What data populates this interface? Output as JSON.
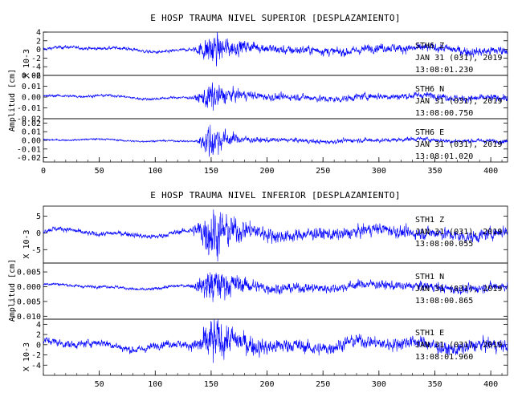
{
  "chart_data": [
    {
      "type": "line",
      "title": "E HOSP TRAUMA NIVEL SUPERIOR [DESPLAZAMIENTO]",
      "ylabel": "Amplitud [cm]",
      "xlim": [
        0,
        415
      ],
      "x_ticks": [
        "0",
        "50",
        "100",
        "150",
        "200",
        "250",
        "300",
        "350",
        "400"
      ],
      "traces": [
        {
          "station": "STH6",
          "component": "Z",
          "date": "JAN 31 (031), 2019",
          "time": "13:08:01.230",
          "scale_label": "X 10-3",
          "ylim": [
            -6,
            4
          ],
          "y_ticks": [
            "4",
            "2",
            "0",
            "-2",
            "-4",
            "-6"
          ],
          "envelope": {
            "pre": 0.3,
            "peak": 3.5,
            "post": 0.8,
            "start": 132,
            "peak_time": 150,
            "decay": 45
          }
        },
        {
          "station": "STH6",
          "component": "N",
          "date": "JAN 31 (031), 2019",
          "time": "13:08:00.750",
          "scale_label": "",
          "ylim": [
            -0.02,
            0.02
          ],
          "y_ticks": [
            "0.02",
            "0.01",
            "0.00",
            "-0.01",
            "-0.02"
          ],
          "envelope": {
            "pre": 0.001,
            "peak": 0.012,
            "post": 0.0025,
            "start": 132,
            "peak_time": 150,
            "decay": 40
          }
        },
        {
          "station": "STH6",
          "component": "E",
          "date": "JAN 31 (031), 2019",
          "time": "13:08:01.020",
          "scale_label": "",
          "ylim": [
            -0.025,
            0.025
          ],
          "y_ticks": [
            "0.02",
            "0.01",
            "0.00",
            "-0.01",
            "-0.02"
          ],
          "envelope": {
            "pre": 0.0008,
            "peak": 0.02,
            "post": 0.002,
            "start": 135,
            "peak_time": 150,
            "decay": 35
          }
        }
      ]
    },
    {
      "type": "line",
      "title": "E HOSP TRAUMA NIVEL INFERIOR [DESPLAZAMIENTO]",
      "ylabel": "Amplitud [cm]",
      "xlim": [
        0,
        415
      ],
      "x_ticks": [
        "50",
        "100",
        "150",
        "200",
        "250",
        "300",
        "350",
        "400"
      ],
      "traces": [
        {
          "station": "STH1",
          "component": "Z",
          "date": "JAN 31 (031), 2019",
          "time": "13:08:00.055",
          "scale_label": "X 10-3",
          "ylim": [
            -9,
            8
          ],
          "y_ticks": [
            "5",
            "0",
            "-5"
          ],
          "envelope": {
            "pre": 0.6,
            "peak": 7,
            "post": 1.4,
            "start": 130,
            "peak_time": 150,
            "decay": 55
          }
        },
        {
          "station": "STH1",
          "component": "N",
          "date": "JAN 31 (031), 2019",
          "time": "13:08:00.865",
          "scale_label": "",
          "ylim": [
            -0.011,
            0.008
          ],
          "y_ticks": [
            "0.005",
            "0.000",
            "-0.005",
            "-0.010"
          ],
          "envelope": {
            "pre": 0.0004,
            "peak": 0.0055,
            "post": 0.0012,
            "start": 130,
            "peak_time": 150,
            "decay": 55
          }
        },
        {
          "station": "STH1",
          "component": "E",
          "date": "JAN 31 (031), 2019",
          "time": "13:08:01.960",
          "scale_label": "X 10-3",
          "ylim": [
            -6,
            5
          ],
          "y_ticks": [
            "4",
            "2",
            "0",
            "-2",
            "-4"
          ],
          "envelope": {
            "pre": 0.6,
            "peak": 4,
            "post": 1.0,
            "start": 130,
            "peak_time": 150,
            "decay": 60
          }
        }
      ]
    }
  ]
}
